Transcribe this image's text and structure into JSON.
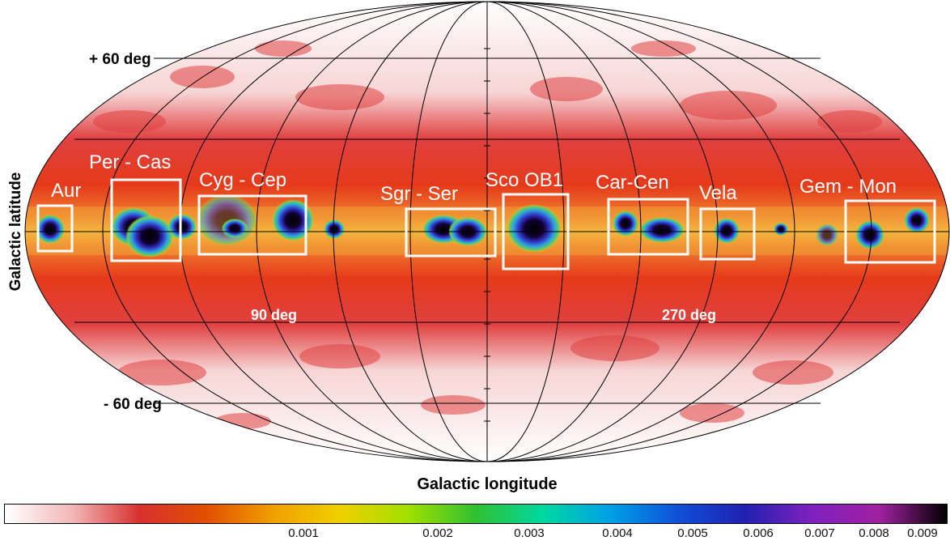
{
  "axes": {
    "ylabel": "Galactic latitude",
    "xlabel": "Galactic longitude",
    "lat_plus": "+ 60 deg",
    "lat_minus": "- 60 deg",
    "lon_90": "90 deg",
    "lon_270": "270 deg"
  },
  "regions": [
    {
      "label": "Aur"
    },
    {
      "label": "Per - Cas"
    },
    {
      "label": "Cyg - Cep"
    },
    {
      "label": "Sgr - Ser"
    },
    {
      "label": "Sco OB1"
    },
    {
      "label": "Car-Cen"
    },
    {
      "label": "Vela"
    },
    {
      "label": "Gem - Mon"
    }
  ],
  "colorbar": {
    "ticks": [
      "0.001",
      "0.002",
      "0.003",
      "0.004",
      "0.005",
      "0.006",
      "0.007",
      "0.008",
      "0.009"
    ],
    "colors": [
      "#ffffff",
      "#f2b8b8",
      "#d83030",
      "#e05000",
      "#f2a000",
      "#f0d000",
      "#a0e000",
      "#30c030",
      "#00d8a0",
      "#00a0e8",
      "#1050d8",
      "#2020b0",
      "#8020c0",
      "#a020a0",
      "#000000"
    ]
  }
}
